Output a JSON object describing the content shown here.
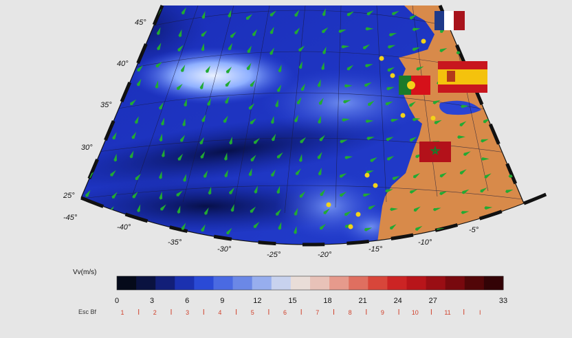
{
  "map": {
    "latitude_labels": [
      "45°",
      "40°",
      "35°",
      "30°",
      "25°"
    ],
    "longitude_labels": [
      "-45°",
      "-40°",
      "-35°",
      "-30°",
      "-25°",
      "-20°",
      "-15°",
      "-10°",
      "-5°"
    ],
    "ocean_color": "#1f35c8",
    "land_color": "#d88a4a",
    "arrow_color": "#22aa33",
    "station_color": "#f2d21a",
    "flags": [
      {
        "country": "France",
        "icon": "france-flag-icon"
      },
      {
        "country": "Spain",
        "icon": "spain-flag-icon"
      },
      {
        "country": "Portugal",
        "icon": "portugal-flag-icon"
      },
      {
        "country": "Morocco",
        "icon": "morocco-flag-icon"
      }
    ]
  },
  "colorbar": {
    "label": "Vv(m/s)",
    "min": 0,
    "max": 33,
    "tick_labels": [
      "0",
      "3",
      "6",
      "9",
      "12",
      "15",
      "18",
      "21",
      "24",
      "27",
      "33"
    ],
    "beaufort_label": "Esc Bf",
    "beaufort_labels": [
      "1",
      "2",
      "3",
      "4",
      "5",
      "6",
      "7",
      "8",
      "9",
      "10",
      "11",
      "I"
    ],
    "beaufort_tick_color": "#d0402a",
    "colors": [
      "#050a1a",
      "#0a1240",
      "#121f78",
      "#1b31b0",
      "#2a4ad6",
      "#4a6ae2",
      "#6b88e6",
      "#97aeee",
      "#c8d2ee",
      "#e9ddd8",
      "#e8c2b8",
      "#e69a8c",
      "#df6f60",
      "#d8463a",
      "#cc2424",
      "#b8151a",
      "#9a0e14",
      "#78090e",
      "#520608",
      "#330306"
    ]
  }
}
